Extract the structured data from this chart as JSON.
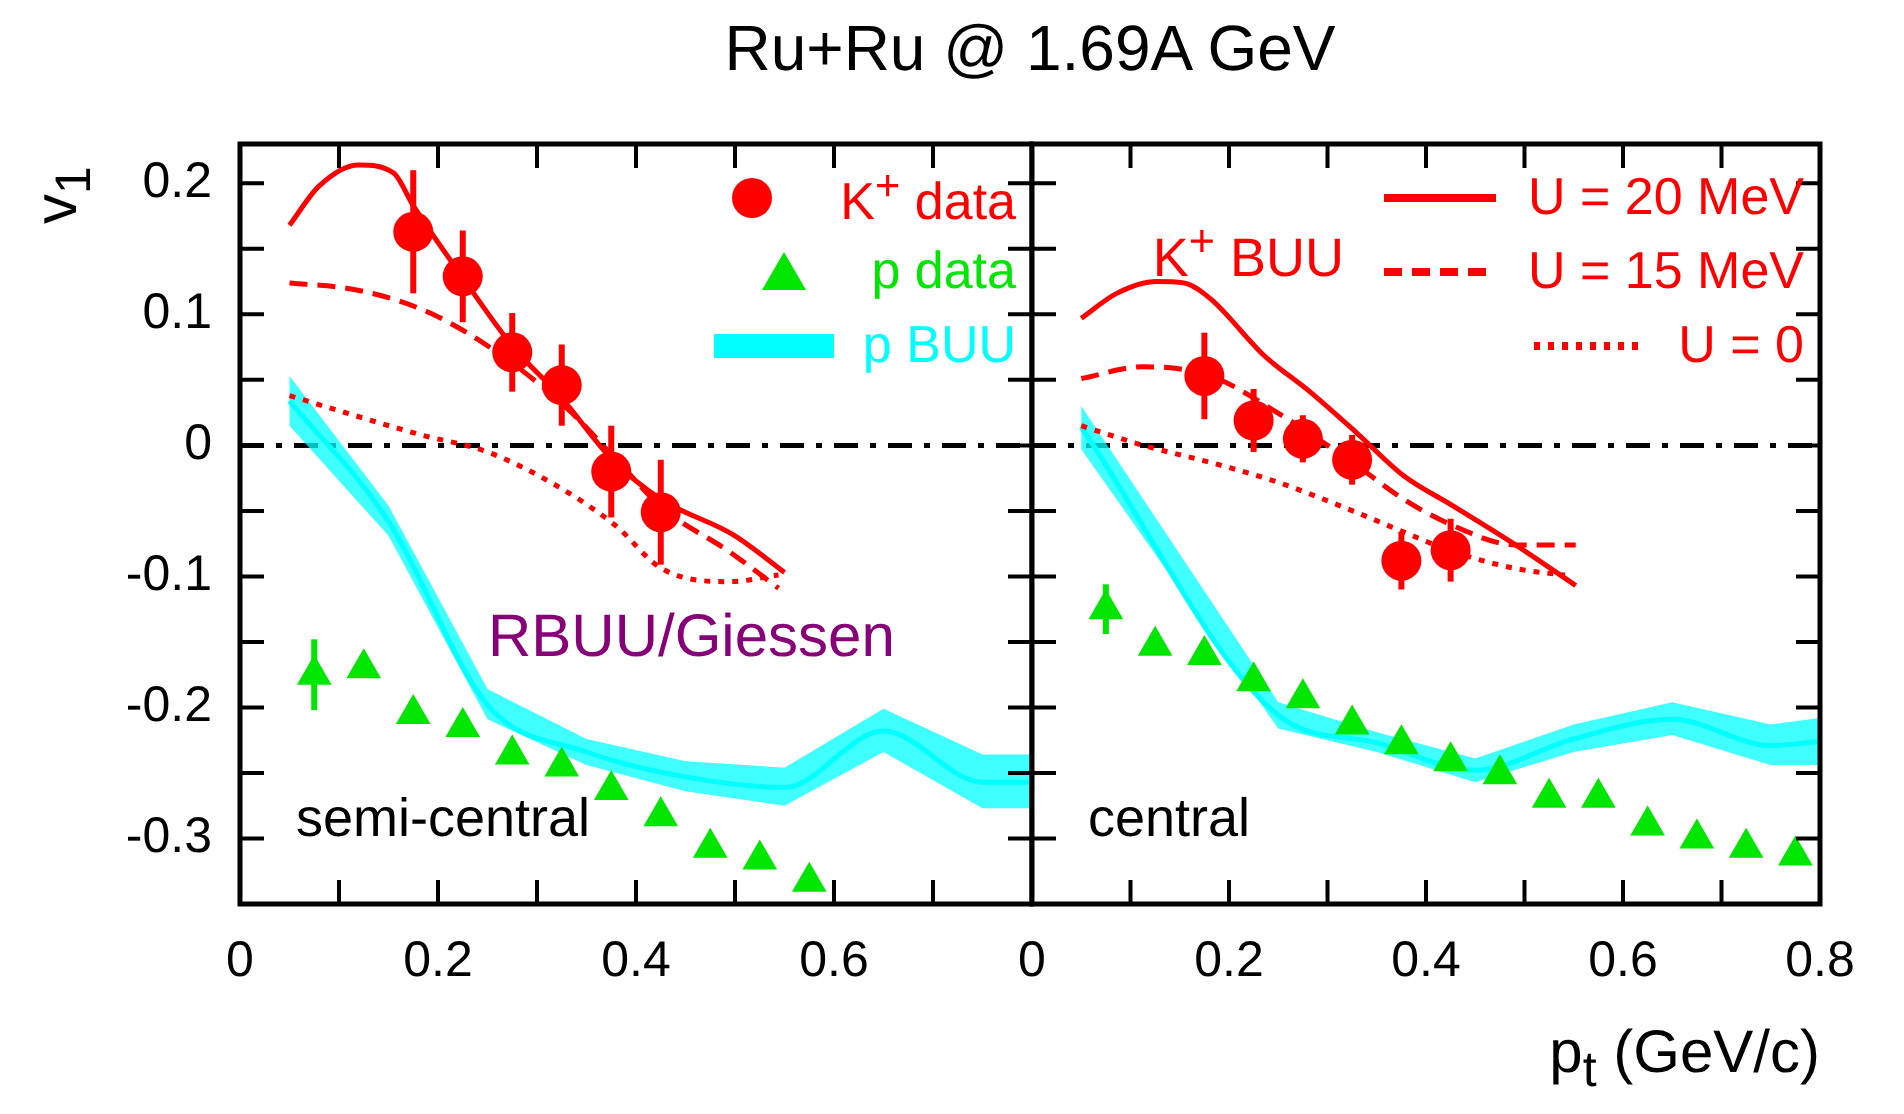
{
  "chart_data": [
    {
      "type": "line",
      "title": "Ru+Ru @ 1.69A GeV",
      "ylabel": "v$_{1}$",
      "xlim": [
        0,
        0.8
      ],
      "ylim": [
        -0.35,
        0.23
      ],
      "xticks": [
        0,
        {
          "value": 0.1,
          "label": null
        },
        0.2,
        {
          "value": 0.3,
          "label": null
        },
        0.4,
        {
          "value": 0.5,
          "label": null
        },
        0.6,
        {
          "value": 0.7,
          "label": null
        },
        {
          "value": 0.8,
          "label": null
        }
      ],
      "yticks": [
        0.2,
        {
          "value": 0.15,
          "label": null
        },
        0.1,
        {
          "value": 0.05,
          "label": null
        },
        0,
        {
          "value": -0.05,
          "label": null
        },
        -0.1,
        {
          "value": -0.15,
          "label": null
        },
        -0.2,
        {
          "value": -0.25,
          "label": null
        },
        -0.3
      ],
      "legend": "top right",
      "annotations": [
        "RBUU/Giessen",
        "semi-central"
      ],
      "ref_lines": [
        {
          "axis": "y",
          "value": 0,
          "color": "#000000",
          "line_style": "dashed"
        }
      ],
      "series": [
        {
          "type": "scatter",
          "name": "K$^{+}$ data",
          "color": "#ff0000",
          "marker": "circle",
          "x": [
            0.175,
            0.225,
            0.275,
            0.325,
            0.375,
            0.425
          ],
          "values": [
            0.163,
            0.129,
            0.071,
            0.046,
            -0.02,
            -0.051
          ],
          "errors": [
            0.047,
            0.035,
            0.03,
            0.031,
            0.035,
            0.04
          ]
        },
        {
          "type": "scatter",
          "name": "p data",
          "color": "#00e600",
          "marker": "triangle",
          "x": [
            0.075,
            0.125,
            0.175,
            0.225,
            0.275,
            0.325,
            0.375,
            0.425,
            0.475,
            0.525,
            0.575
          ],
          "values": [
            -0.175,
            -0.17,
            -0.205,
            -0.215,
            -0.236,
            -0.245,
            -0.263,
            -0.283,
            -0.307,
            -0.316,
            -0.333
          ],
          "errors": [
            0.027,
            null,
            null,
            null,
            null,
            null,
            null,
            null,
            null,
            null,
            null
          ]
        },
        {
          "type": "line",
          "name": "p BUU",
          "color": "#00ffff",
          "marker": "none",
          "line_style": "solid",
          "x": [
            0.05,
            0.15,
            0.25,
            0.35,
            0.45,
            0.55,
            0.65,
            0.75,
            0.8
          ],
          "values": [
            0.034,
            -0.058,
            -0.198,
            -0.234,
            -0.253,
            -0.261,
            -0.218,
            -0.257,
            -0.257
          ],
          "lower": [
            0.015,
            -0.069,
            -0.209,
            -0.244,
            -0.264,
            -0.275,
            -0.234,
            -0.277,
            -0.277
          ],
          "upper": [
            0.053,
            -0.046,
            -0.186,
            -0.224,
            -0.241,
            -0.246,
            -0.201,
            -0.236,
            -0.236
          ]
        },
        {
          "type": "line",
          "color": "#ff0000",
          "marker": "none",
          "line_style": "solid",
          "x": [
            0.05,
            0.08,
            0.12,
            0.155,
            0.175,
            0.225,
            0.275,
            0.325,
            0.375,
            0.425,
            0.5,
            0.55
          ],
          "values": [
            0.168,
            0.198,
            0.214,
            0.208,
            0.183,
            0.128,
            0.076,
            0.036,
            -0.01,
            -0.041,
            -0.069,
            -0.097
          ]
        },
        {
          "type": "line",
          "color": "#ff0000",
          "marker": "none",
          "line_style": "dashed",
          "x": [
            0.05,
            0.115,
            0.183,
            0.25,
            0.328,
            0.379,
            0.427,
            0.494,
            0.544
          ],
          "values": [
            0.124,
            0.119,
            0.104,
            0.076,
            0.03,
            -0.01,
            -0.048,
            -0.081,
            -0.109
          ]
        },
        {
          "type": "line",
          "color": "#ff0000",
          "marker": "none",
          "line_style": "dotted",
          "x": [
            0.05,
            0.115,
            0.183,
            0.25,
            0.318,
            0.379,
            0.426,
            0.494,
            0.544
          ],
          "values": [
            0.038,
            0.023,
            0.008,
            -0.005,
            -0.03,
            -0.061,
            -0.094,
            -0.104,
            -0.099
          ]
        }
      ]
    },
    {
      "type": "line",
      "xlabel": "p$_{t}$ (GeV/c)",
      "xlim": [
        0,
        0.8
      ],
      "ylim": [
        -0.35,
        0.23
      ],
      "xticks": [
        0,
        {
          "value": 0.1,
          "label": null
        },
        0.2,
        {
          "value": 0.3,
          "label": null
        },
        0.4,
        {
          "value": 0.5,
          "label": null
        },
        0.6,
        {
          "value": 0.7,
          "label": null
        },
        0.8
      ],
      "yticks": [
        0.2,
        {
          "value": 0.15,
          "label": null
        },
        0.1,
        {
          "value": 0.05,
          "label": null
        },
        0,
        {
          "value": -0.05,
          "label": null
        },
        -0.1,
        {
          "value": -0.15,
          "label": null
        },
        -0.2,
        {
          "value": -0.25,
          "label": null
        },
        -0.3
      ],
      "tick_labels": "x",
      "legend": "top right",
      "legend_title": "K$^{+}$ BUU",
      "annotations": [
        "central"
      ],
      "ref_lines": [
        {
          "axis": "y",
          "value": 0,
          "color": "#000000",
          "line_style": "dashed"
        }
      ],
      "series": [
        {
          "type": "line",
          "name": "U = 20 MeV",
          "color": "#ff0000",
          "marker": "none",
          "line_style": "solid",
          "x": [
            0.05,
            0.086,
            0.126,
            0.154,
            0.181,
            0.235,
            0.282,
            0.329,
            0.377,
            0.427,
            0.491,
            0.552
          ],
          "values": [
            0.097,
            0.116,
            0.125,
            0.124,
            0.112,
            0.069,
            0.041,
            0.01,
            -0.023,
            -0.046,
            -0.076,
            -0.107
          ]
        },
        {
          "type": "line",
          "name": "U = 15 MeV",
          "color": "#ff0000",
          "marker": "none",
          "line_style": "dashed",
          "x": [
            0.05,
            0.113,
            0.181,
            0.249,
            0.329,
            0.377,
            0.427,
            0.491,
            0.552
          ],
          "values": [
            0.051,
            0.06,
            0.053,
            0.025,
            -0.015,
            -0.041,
            -0.061,
            -0.076,
            -0.076
          ]
        },
        {
          "type": "line",
          "name": "U = 0",
          "color": "#ff0000",
          "marker": "none",
          "line_style": "dotted",
          "x": [
            0.05,
            0.113,
            0.181,
            0.249,
            0.329,
            0.377,
            0.427,
            0.491,
            0.541
          ],
          "values": [
            0.015,
            0,
            -0.013,
            -0.028,
            -0.051,
            -0.066,
            -0.081,
            -0.094,
            -0.099
          ]
        },
        {
          "type": "line",
          "color": "#00ffff",
          "marker": "none",
          "line_style": "solid",
          "x": [
            0.05,
            0.25,
            0.35,
            0.45,
            0.55,
            0.65,
            0.75,
            0.8
          ],
          "values": [
            0.014,
            -0.206,
            -0.227,
            -0.248,
            -0.224,
            -0.209,
            -0.229,
            -0.226
          ],
          "lower": [
            -0.003,
            -0.216,
            -0.234,
            -0.257,
            -0.234,
            -0.221,
            -0.244,
            -0.244
          ],
          "upper": [
            0.03,
            -0.196,
            -0.219,
            -0.239,
            -0.213,
            -0.196,
            -0.213,
            -0.208
          ]
        },
        {
          "type": "scatter",
          "color": "#ff0000",
          "marker": "circle",
          "x": [
            0.175,
            0.225,
            0.275,
            0.325,
            0.375,
            0.425
          ],
          "values": [
            0.053,
            0.019,
            0.005,
            -0.011,
            -0.088,
            -0.08
          ],
          "errors": [
            0.033,
            0.024,
            0.018,
            0.019,
            0.022,
            0.024
          ]
        },
        {
          "type": "scatter",
          "color": "#00e600",
          "marker": "triangle",
          "x": [
            0.075,
            0.125,
            0.175,
            0.225,
            0.275,
            0.325,
            0.375,
            0.425,
            0.475,
            0.525,
            0.575,
            0.625,
            0.675,
            0.725,
            0.775
          ],
          "values": [
            -0.125,
            -0.153,
            -0.16,
            -0.18,
            -0.193,
            -0.213,
            -0.228,
            -0.241,
            -0.251,
            -0.269,
            -0.269,
            -0.29,
            -0.3,
            -0.307,
            -0.313
          ],
          "errors": [
            0.019,
            null,
            null,
            null,
            null,
            null,
            null,
            null,
            null,
            null,
            null,
            null,
            null,
            null,
            null
          ]
        }
      ]
    }
  ]
}
